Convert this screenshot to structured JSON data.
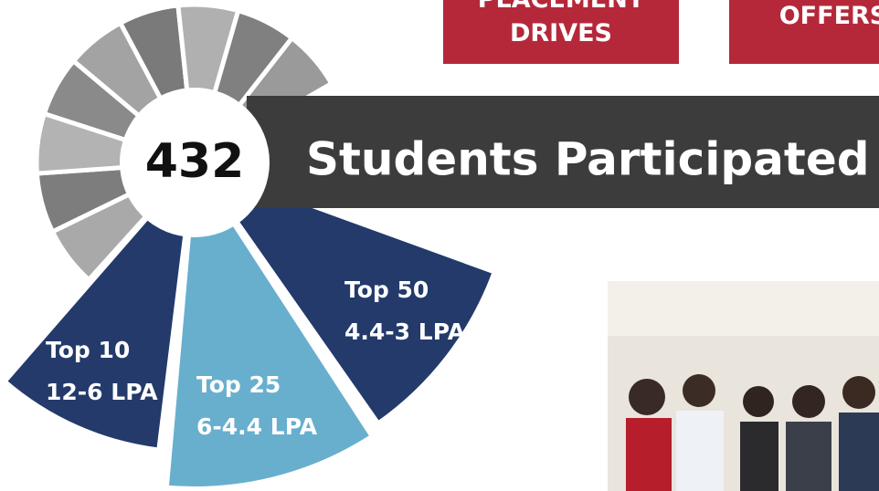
{
  "header": {
    "buttons": [
      {
        "label_lines": [
          "PLACEMENT",
          "DRIVES"
        ]
      },
      {
        "label_lines": [
          "OFFERS"
        ]
      }
    ]
  },
  "center": {
    "value": "432",
    "caption": "Students Participated"
  },
  "segments": [
    {
      "title": "Top 10",
      "range": "12-6 LPA"
    },
    {
      "title": "Top 25",
      "range": "6-4.4 LPA"
    },
    {
      "title": "Top 50",
      "range": "4.4-3 LPA"
    }
  ]
}
